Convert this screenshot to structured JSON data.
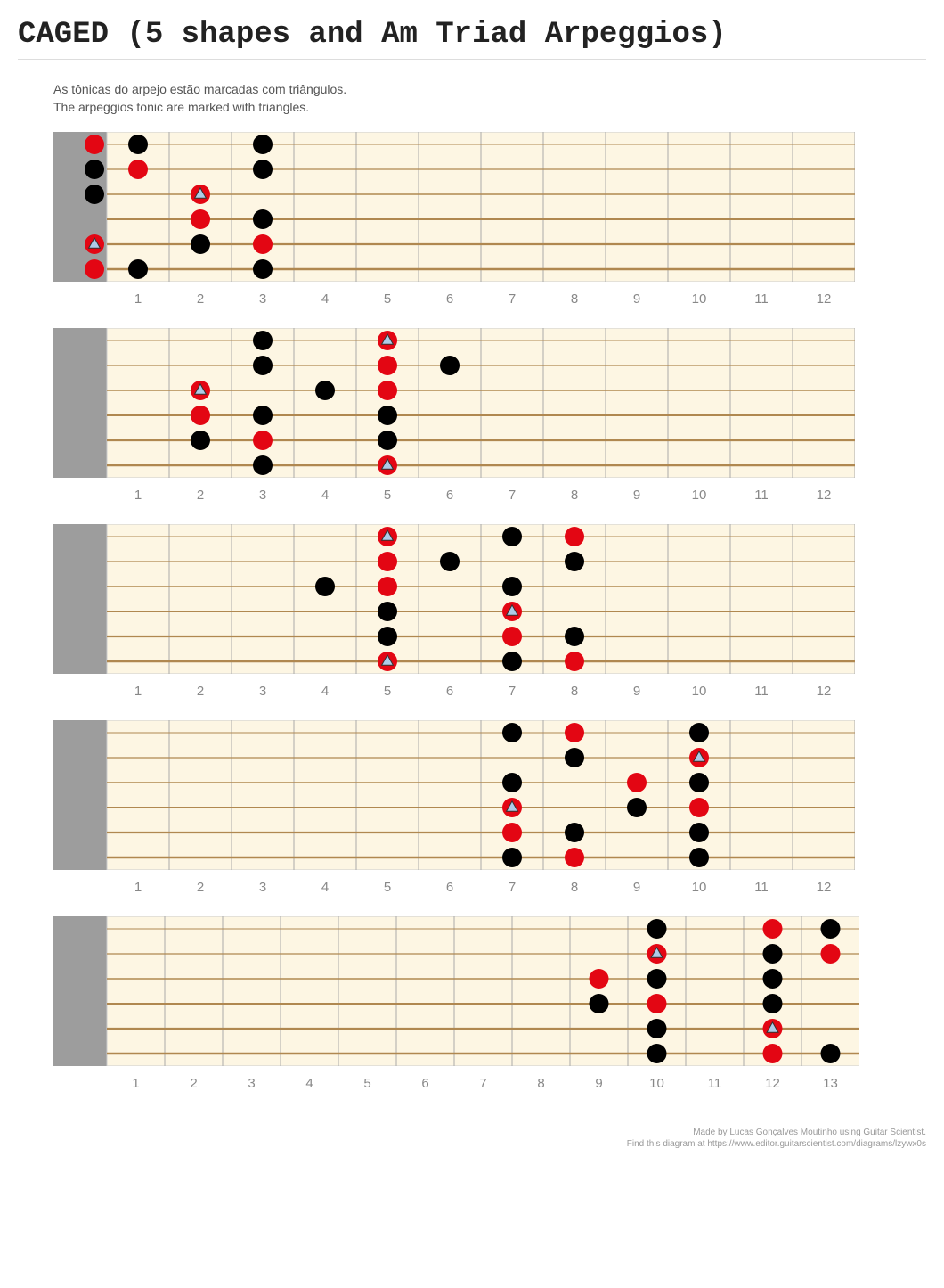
{
  "title": "CAGED (5 shapes and Am Triad Arpeggios)",
  "caption_line1": "As tônicas do arpejo estão marcadas com triângulos.",
  "caption_line2": "The arpeggios tonic are marked with triangles.",
  "footer_line1": "Made by Lucas Gonçalves Moutinho using Guitar Scientist.",
  "footer_line2": "Find this diagram at https://www.editor.guitarscientist.com/diagrams/lzywx0s",
  "colors": {
    "bg": "#ffffff",
    "fretboard_bg": "#fdf6e3",
    "nut": "#9d9d9d",
    "fret_line": "#aaaaaa",
    "string": "#b08850",
    "dot_black": "#000000",
    "dot_red": "#e30613",
    "triangle_fill": "#aecbe8",
    "triangle_stroke": "#333333",
    "fret_number": "#888888"
  },
  "diagram_style": {
    "strings": 6,
    "board_height": 168,
    "nut_width": 60,
    "dot_radius": 11,
    "string_spacing": 28,
    "top_margin_in_board": 14,
    "fret_number_fontsize": 15
  },
  "boards": [
    {
      "frets": 12,
      "fret_width": 70,
      "show_open": true,
      "open_dots": [
        {
          "string": 1,
          "color": "red",
          "triangle": false
        },
        {
          "string": 2,
          "color": "black",
          "triangle": false
        },
        {
          "string": 3,
          "color": "black",
          "triangle": false
        },
        {
          "string": 5,
          "color": "red",
          "triangle": true
        },
        {
          "string": 6,
          "color": "red",
          "triangle": false
        }
      ],
      "dots": [
        {
          "fret": 1,
          "string": 1,
          "color": "black"
        },
        {
          "fret": 1,
          "string": 2,
          "color": "red"
        },
        {
          "fret": 1,
          "string": 6,
          "color": "black"
        },
        {
          "fret": 2,
          "string": 3,
          "color": "red",
          "triangle": true
        },
        {
          "fret": 2,
          "string": 4,
          "color": "red"
        },
        {
          "fret": 2,
          "string": 5,
          "color": "black"
        },
        {
          "fret": 3,
          "string": 1,
          "color": "black"
        },
        {
          "fret": 3,
          "string": 2,
          "color": "black"
        },
        {
          "fret": 3,
          "string": 4,
          "color": "black"
        },
        {
          "fret": 3,
          "string": 5,
          "color": "red"
        },
        {
          "fret": 3,
          "string": 6,
          "color": "black"
        }
      ]
    },
    {
      "frets": 12,
      "fret_width": 70,
      "show_open": false,
      "dots": [
        {
          "fret": 2,
          "string": 3,
          "color": "red",
          "triangle": true
        },
        {
          "fret": 2,
          "string": 4,
          "color": "red"
        },
        {
          "fret": 2,
          "string": 5,
          "color": "black"
        },
        {
          "fret": 3,
          "string": 1,
          "color": "black"
        },
        {
          "fret": 3,
          "string": 2,
          "color": "black"
        },
        {
          "fret": 3,
          "string": 4,
          "color": "black"
        },
        {
          "fret": 3,
          "string": 5,
          "color": "red"
        },
        {
          "fret": 3,
          "string": 6,
          "color": "black"
        },
        {
          "fret": 4,
          "string": 3,
          "color": "black"
        },
        {
          "fret": 5,
          "string": 1,
          "color": "red",
          "triangle": true
        },
        {
          "fret": 5,
          "string": 2,
          "color": "red"
        },
        {
          "fret": 5,
          "string": 3,
          "color": "red"
        },
        {
          "fret": 5,
          "string": 4,
          "color": "black"
        },
        {
          "fret": 5,
          "string": 5,
          "color": "black"
        },
        {
          "fret": 5,
          "string": 6,
          "color": "red",
          "triangle": true
        },
        {
          "fret": 6,
          "string": 2,
          "color": "black"
        }
      ]
    },
    {
      "frets": 12,
      "fret_width": 70,
      "show_open": false,
      "dots": [
        {
          "fret": 4,
          "string": 3,
          "color": "black"
        },
        {
          "fret": 5,
          "string": 1,
          "color": "red",
          "triangle": true
        },
        {
          "fret": 5,
          "string": 2,
          "color": "red"
        },
        {
          "fret": 5,
          "string": 3,
          "color": "red"
        },
        {
          "fret": 5,
          "string": 4,
          "color": "black"
        },
        {
          "fret": 5,
          "string": 5,
          "color": "black"
        },
        {
          "fret": 5,
          "string": 6,
          "color": "red",
          "triangle": true
        },
        {
          "fret": 6,
          "string": 2,
          "color": "black"
        },
        {
          "fret": 7,
          "string": 1,
          "color": "black"
        },
        {
          "fret": 7,
          "string": 3,
          "color": "black"
        },
        {
          "fret": 7,
          "string": 4,
          "color": "red",
          "triangle": true
        },
        {
          "fret": 7,
          "string": 5,
          "color": "red"
        },
        {
          "fret": 7,
          "string": 6,
          "color": "black"
        },
        {
          "fret": 8,
          "string": 1,
          "color": "red"
        },
        {
          "fret": 8,
          "string": 2,
          "color": "black"
        },
        {
          "fret": 8,
          "string": 5,
          "color": "black"
        },
        {
          "fret": 8,
          "string": 6,
          "color": "red"
        }
      ]
    },
    {
      "frets": 12,
      "fret_width": 70,
      "show_open": false,
      "dots": [
        {
          "fret": 7,
          "string": 1,
          "color": "black"
        },
        {
          "fret": 7,
          "string": 3,
          "color": "black"
        },
        {
          "fret": 7,
          "string": 4,
          "color": "red",
          "triangle": true
        },
        {
          "fret": 7,
          "string": 5,
          "color": "red"
        },
        {
          "fret": 7,
          "string": 6,
          "color": "black"
        },
        {
          "fret": 8,
          "string": 1,
          "color": "red"
        },
        {
          "fret": 8,
          "string": 2,
          "color": "black"
        },
        {
          "fret": 8,
          "string": 5,
          "color": "black"
        },
        {
          "fret": 8,
          "string": 6,
          "color": "red"
        },
        {
          "fret": 9,
          "string": 3,
          "color": "red"
        },
        {
          "fret": 9,
          "string": 4,
          "color": "black"
        },
        {
          "fret": 10,
          "string": 1,
          "color": "black"
        },
        {
          "fret": 10,
          "string": 2,
          "color": "red",
          "triangle": true
        },
        {
          "fret": 10,
          "string": 3,
          "color": "black"
        },
        {
          "fret": 10,
          "string": 4,
          "color": "red"
        },
        {
          "fret": 10,
          "string": 5,
          "color": "black"
        },
        {
          "fret": 10,
          "string": 6,
          "color": "black"
        }
      ]
    },
    {
      "frets": 13,
      "fret_width": 65,
      "show_open": false,
      "dots": [
        {
          "fret": 9,
          "string": 3,
          "color": "red"
        },
        {
          "fret": 9,
          "string": 4,
          "color": "black"
        },
        {
          "fret": 10,
          "string": 1,
          "color": "black"
        },
        {
          "fret": 10,
          "string": 2,
          "color": "red",
          "triangle": true
        },
        {
          "fret": 10,
          "string": 3,
          "color": "black"
        },
        {
          "fret": 10,
          "string": 4,
          "color": "red"
        },
        {
          "fret": 10,
          "string": 5,
          "color": "black"
        },
        {
          "fret": 10,
          "string": 6,
          "color": "black"
        },
        {
          "fret": 12,
          "string": 1,
          "color": "red"
        },
        {
          "fret": 12,
          "string": 2,
          "color": "black"
        },
        {
          "fret": 12,
          "string": 3,
          "color": "black"
        },
        {
          "fret": 12,
          "string": 4,
          "color": "black"
        },
        {
          "fret": 12,
          "string": 5,
          "color": "red",
          "triangle": true
        },
        {
          "fret": 12,
          "string": 6,
          "color": "red"
        },
        {
          "fret": 13,
          "string": 1,
          "color": "black"
        },
        {
          "fret": 13,
          "string": 2,
          "color": "red"
        },
        {
          "fret": 13,
          "string": 6,
          "color": "black"
        }
      ]
    }
  ]
}
